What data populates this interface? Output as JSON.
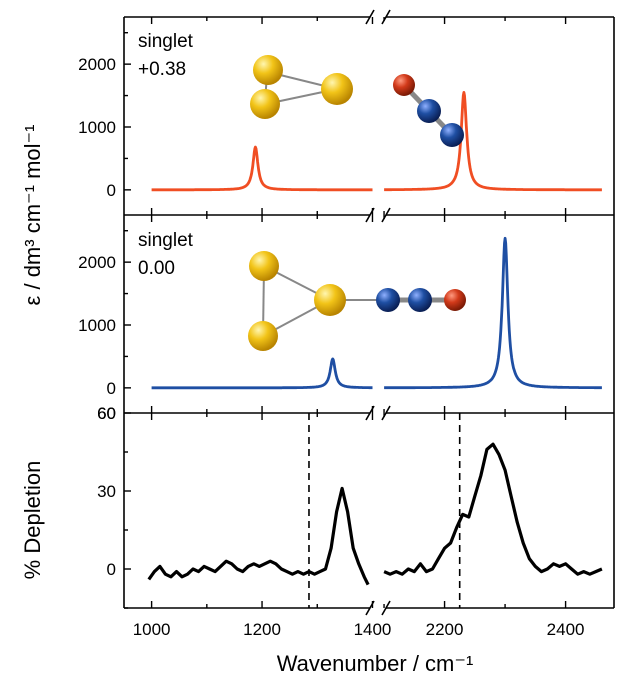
{
  "chart_data": [
    {
      "type": "line",
      "panel": "top",
      "annotation_state": "singlet",
      "annotation_energy": "+0.38",
      "ylabel": "ε / dm³ cm⁻¹ mol⁻¹",
      "ylim": [
        -400,
        2750
      ],
      "yticks": [
        0,
        1000,
        2000
      ],
      "xlim": [
        950,
        2480
      ],
      "axis_break": [
        1410,
        2090
      ],
      "color": "#f04e23",
      "peaks": [
        {
          "x": 1188,
          "y": 680
        },
        {
          "x": 2232,
          "y": 1550
        }
      ],
      "segments": [
        [
          1000,
          1400
        ],
        [
          2100,
          2460
        ]
      ]
    },
    {
      "type": "line",
      "panel": "middle",
      "annotation_state": "singlet",
      "annotation_energy": "0.00",
      "ylim": [
        -400,
        2750
      ],
      "yticks": [
        0,
        1000,
        2000
      ],
      "xlim": [
        950,
        2480
      ],
      "axis_break": [
        1410,
        2090
      ],
      "color": "#1f4fa3",
      "peaks": [
        {
          "x": 1328,
          "y": 460
        },
        {
          "x": 2300,
          "y": 2380
        }
      ],
      "segments": [
        [
          1000,
          1400
        ],
        [
          2100,
          2460
        ]
      ]
    },
    {
      "type": "line",
      "panel": "bottom",
      "ylabel": "% Depletion",
      "xlabel": "Wavenumber / cm⁻¹",
      "ylim": [
        -15,
        60
      ],
      "yticks": [
        0,
        30,
        60
      ],
      "top_tick_label": "60",
      "xlim": [
        950,
        2480
      ],
      "axis_break": [
        1410,
        2090
      ],
      "xticks": [
        1000,
        1200,
        1400,
        2200,
        2400
      ],
      "color": "#000000",
      "dashed_lines_x": [
        1285,
        2225
      ],
      "series": [
        {
          "x": [
            995,
            1005,
            1015,
            1025,
            1035,
            1045,
            1055,
            1065,
            1075,
            1085,
            1095,
            1105,
            1115,
            1125,
            1135,
            1145,
            1155,
            1165,
            1175,
            1185,
            1195,
            1205,
            1215,
            1225,
            1235,
            1245,
            1255,
            1265,
            1275,
            1285,
            1295,
            1305,
            1315,
            1325,
            1335,
            1345,
            1355,
            1365,
            1375,
            1385,
            1392
          ],
          "y": [
            -4,
            -1,
            1,
            -2,
            -3,
            -1,
            -3,
            -2,
            0,
            -1,
            1,
            0,
            -1,
            1,
            3,
            2,
            0,
            -1,
            1,
            2,
            1,
            2,
            3,
            2,
            0,
            -1,
            -2,
            -1,
            -2,
            -1,
            -2,
            -1,
            0,
            8,
            22,
            31,
            22,
            8,
            2,
            -3,
            -6
          ]
        },
        {
          "x": [
            2100,
            2110,
            2120,
            2130,
            2140,
            2150,
            2160,
            2170,
            2180,
            2190,
            2200,
            2210,
            2220,
            2230,
            2240,
            2250,
            2260,
            2270,
            2280,
            2290,
            2300,
            2310,
            2320,
            2330,
            2340,
            2350,
            2360,
            2370,
            2380,
            2390,
            2400,
            2410,
            2420,
            2430,
            2440,
            2450,
            2460
          ],
          "y": [
            -1,
            -2,
            -1,
            -2,
            0,
            -1,
            2,
            -1,
            0,
            4,
            8,
            10,
            16,
            21,
            20,
            28,
            36,
            46,
            48,
            44,
            38,
            28,
            18,
            10,
            4,
            1,
            -1,
            0,
            2,
            1,
            2,
            0,
            -2,
            -1,
            -2,
            -1,
            0
          ]
        }
      ]
    }
  ],
  "molecule_colors": {
    "sulfur": "#f2c418",
    "nitrogen": "#1f4fa3",
    "oxygen": "#d23a1a"
  }
}
